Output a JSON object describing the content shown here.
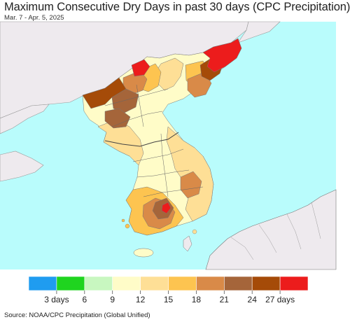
{
  "header": {
    "title": "Maximum Consecutive Dry Days in past 30 days (CPC Precipitation)",
    "date_range": "Mar. 7 - Apr. 5, 2025"
  },
  "legend": {
    "bins": [
      {
        "color": "#1f9cf0"
      },
      {
        "color": "#1fd41f"
      },
      {
        "color": "#c8f7c0"
      },
      {
        "color": "#fffcc8"
      },
      {
        "color": "#fedf96"
      },
      {
        "color": "#fdc450"
      },
      {
        "color": "#d98a48"
      },
      {
        "color": "#a5653a"
      },
      {
        "color": "#a54b08"
      },
      {
        "color": "#ec1c1c"
      }
    ],
    "tick_labels": [
      "3 days",
      "6",
      "9",
      "12",
      "15",
      "18",
      "21",
      "24",
      "27 days"
    ]
  },
  "colors": {
    "sea": "#b9fcfc",
    "land_outside": "#eeeaee",
    "border": "#555555"
  },
  "footer": {
    "source": "Source: NOAA/CPC Precipitation (Global Unified)"
  }
}
